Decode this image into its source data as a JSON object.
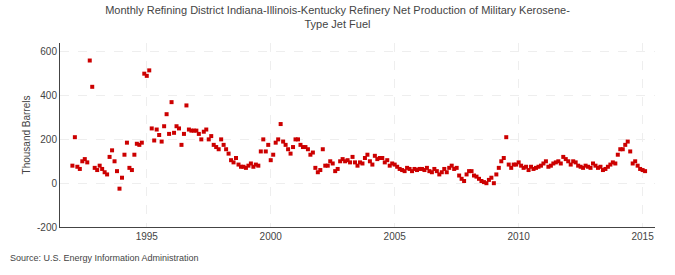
{
  "chart_data": {
    "type": "scatter",
    "title": "Monthly Refining District Indiana-Illinois-Kentucky Refinery Net Production of Military Kerosene-\nType Jet Fuel",
    "ylabel": "Thousand Barrels",
    "annotation": "Source: U.S. Energy Information Administration",
    "color": "#cc0000",
    "marker": "square",
    "grid": true,
    "xlim": [
      1991.5,
      2015.5
    ],
    "ylim": [
      -200,
      640
    ],
    "xticks": [
      1995,
      2000,
      2005,
      2010,
      2015
    ],
    "yticks": [
      -200,
      0,
      200,
      400,
      600
    ],
    "x": [
      1992.0,
      1992.1,
      1992.2,
      1992.3,
      1992.4,
      1992.5,
      1992.6,
      1992.7,
      1992.8,
      1992.9,
      1993.0,
      1993.1,
      1993.2,
      1993.3,
      1993.4,
      1993.5,
      1993.6,
      1993.7,
      1993.8,
      1993.9,
      1994.0,
      1994.1,
      1994.2,
      1994.3,
      1994.4,
      1994.5,
      1994.6,
      1994.7,
      1994.8,
      1994.9,
      1995.0,
      1995.1,
      1995.2,
      1995.3,
      1995.4,
      1995.5,
      1995.6,
      1995.7,
      1995.8,
      1995.9,
      1996.0,
      1996.1,
      1996.2,
      1996.3,
      1996.4,
      1996.5,
      1996.6,
      1996.7,
      1996.8,
      1996.9,
      1997.0,
      1997.1,
      1997.2,
      1997.3,
      1997.4,
      1997.5,
      1997.6,
      1997.7,
      1997.8,
      1997.9,
      1998.0,
      1998.1,
      1998.2,
      1998.3,
      1998.4,
      1998.5,
      1998.6,
      1998.7,
      1998.8,
      1998.9,
      1999.0,
      1999.1,
      1999.2,
      1999.3,
      1999.4,
      1999.5,
      1999.6,
      1999.7,
      1999.8,
      1999.9,
      2000.0,
      2000.1,
      2000.2,
      2000.3,
      2000.4,
      2000.5,
      2000.6,
      2000.7,
      2000.8,
      2000.9,
      2001.0,
      2001.1,
      2001.2,
      2001.3,
      2001.4,
      2001.5,
      2001.6,
      2001.7,
      2001.8,
      2001.9,
      2002.0,
      2002.1,
      2002.2,
      2002.3,
      2002.4,
      2002.5,
      2002.6,
      2002.7,
      2002.8,
      2002.9,
      2003.0,
      2003.1,
      2003.2,
      2003.3,
      2003.4,
      2003.5,
      2003.6,
      2003.7,
      2003.8,
      2003.9,
      2004.0,
      2004.1,
      2004.2,
      2004.3,
      2004.4,
      2004.5,
      2004.6,
      2004.7,
      2004.8,
      2004.9,
      2005.0,
      2005.1,
      2005.2,
      2005.3,
      2005.4,
      2005.5,
      2005.6,
      2005.7,
      2005.8,
      2005.9,
      2006.0,
      2006.1,
      2006.2,
      2006.3,
      2006.4,
      2006.5,
      2006.6,
      2006.7,
      2006.8,
      2006.9,
      2007.0,
      2007.1,
      2007.2,
      2007.3,
      2007.4,
      2007.5,
      2007.6,
      2007.7,
      2007.8,
      2007.9,
      2008.0,
      2008.1,
      2008.2,
      2008.3,
      2008.4,
      2008.5,
      2008.6,
      2008.7,
      2008.8,
      2008.9,
      2009.0,
      2009.1,
      2009.2,
      2009.3,
      2009.4,
      2009.5,
      2009.6,
      2009.7,
      2009.8,
      2009.9,
      2010.0,
      2010.1,
      2010.2,
      2010.3,
      2010.4,
      2010.5,
      2010.6,
      2010.7,
      2010.8,
      2010.9,
      2011.0,
      2011.1,
      2011.2,
      2011.3,
      2011.4,
      2011.5,
      2011.6,
      2011.7,
      2011.8,
      2011.9,
      2012.0,
      2012.1,
      2012.2,
      2012.3,
      2012.4,
      2012.5,
      2012.6,
      2012.7,
      2012.8,
      2012.9,
      2013.0,
      2013.1,
      2013.2,
      2013.3,
      2013.4,
      2013.5,
      2013.6,
      2013.7,
      2013.8,
      2013.9,
      2014.0,
      2014.1,
      2014.2,
      2014.3,
      2014.4,
      2014.5,
      2014.6,
      2014.7,
      2014.8,
      2014.9,
      2015.0,
      2015.1
    ],
    "values": [
      80,
      210,
      75,
      65,
      100,
      110,
      95,
      560,
      440,
      70,
      60,
      80,
      65,
      50,
      40,
      120,
      150,
      100,
      55,
      -25,
      25,
      130,
      185,
      70,
      60,
      130,
      180,
      175,
      185,
      500,
      490,
      515,
      250,
      195,
      245,
      220,
      190,
      260,
      315,
      225,
      370,
      230,
      260,
      250,
      175,
      225,
      355,
      245,
      240,
      240,
      240,
      225,
      200,
      235,
      245,
      200,
      215,
      175,
      165,
      155,
      200,
      175,
      155,
      135,
      105,
      95,
      115,
      85,
      75,
      75,
      70,
      80,
      90,
      75,
      85,
      80,
      145,
      200,
      145,
      175,
      105,
      130,
      185,
      200,
      270,
      190,
      175,
      155,
      135,
      165,
      200,
      200,
      175,
      165,
      165,
      155,
      130,
      140,
      70,
      50,
      60,
      155,
      80,
      80,
      100,
      90,
      55,
      65,
      100,
      110,
      100,
      105,
      95,
      120,
      95,
      80,
      95,
      90,
      115,
      130,
      100,
      85,
      125,
      110,
      115,
      115,
      95,
      105,
      80,
      90,
      85,
      75,
      65,
      60,
      55,
      70,
      65,
      55,
      65,
      60,
      65,
      65,
      60,
      70,
      55,
      50,
      65,
      55,
      40,
      50,
      65,
      50,
      70,
      80,
      65,
      70,
      35,
      20,
      10,
      40,
      55,
      55,
      35,
      30,
      20,
      10,
      5,
      0,
      15,
      25,
      0,
      40,
      70,
      100,
      115,
      210,
      85,
      70,
      85,
      85,
      95,
      80,
      70,
      75,
      60,
      75,
      65,
      70,
      75,
      80,
      90,
      100,
      75,
      80,
      90,
      95,
      100,
      90,
      120,
      110,
      100,
      85,
      100,
      95,
      80,
      75,
      70,
      80,
      75,
      70,
      90,
      80,
      70,
      75,
      60,
      65,
      75,
      85,
      95,
      90,
      130,
      155,
      155,
      175,
      190,
      145,
      90,
      100,
      80,
      65,
      60,
      55
    ]
  }
}
